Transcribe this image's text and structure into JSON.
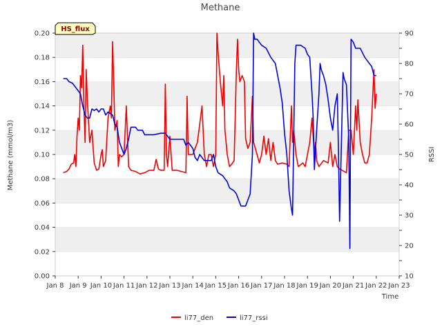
{
  "chart_data": {
    "type": "line",
    "title": "Methane",
    "badge": "HS_flux",
    "xlabel": "Time",
    "ylabel": "Methane (mmol/m3)",
    "y2label": "RSSI",
    "x_ticks": [
      "Jan 8",
      "Jan 9",
      "Jan 10",
      "Jan 11",
      "Jan 12",
      "Jan 13",
      "Jan 14",
      "Jan 15",
      "Jan 16",
      "Jan 17",
      "Jan 18",
      "Jan 19",
      "Jan 20",
      "Jan 21",
      "Jan 22",
      "Jan 23"
    ],
    "xlim": [
      8,
      23
    ],
    "ylim": [
      0,
      0.2
    ],
    "y_ticks": [
      "0.00",
      "0.02",
      "0.04",
      "0.06",
      "0.08",
      "0.10",
      "0.12",
      "0.14",
      "0.16",
      "0.18",
      "0.20"
    ],
    "y2lim": [
      10,
      90
    ],
    "y2_ticks": [
      "10",
      "20",
      "30",
      "40",
      "50",
      "60",
      "70",
      "80",
      "90"
    ],
    "colors": {
      "li77_den": "#ee0000",
      "li77_rssi": "#0000dd",
      "band": "#efefef",
      "badge_bg": "#ffffc0"
    },
    "series": [
      {
        "name": "li77_den",
        "axis": "left",
        "points": [
          [
            8.35,
            0.085
          ],
          [
            8.5,
            0.086
          ],
          [
            8.6,
            0.088
          ],
          [
            8.7,
            0.092
          ],
          [
            8.8,
            0.093
          ],
          [
            8.85,
            0.1
          ],
          [
            8.9,
            0.09
          ],
          [
            8.95,
            0.115
          ],
          [
            9.0,
            0.13
          ],
          [
            9.05,
            0.12
          ],
          [
            9.1,
            0.165
          ],
          [
            9.15,
            0.155
          ],
          [
            9.2,
            0.19
          ],
          [
            9.25,
            0.14
          ],
          [
            9.3,
            0.11
          ],
          [
            9.35,
            0.17
          ],
          [
            9.4,
            0.145
          ],
          [
            9.5,
            0.11
          ],
          [
            9.6,
            0.12
          ],
          [
            9.7,
            0.093
          ],
          [
            9.8,
            0.087
          ],
          [
            9.9,
            0.088
          ],
          [
            10.0,
            0.1
          ],
          [
            10.05,
            0.104
          ],
          [
            10.1,
            0.09
          ],
          [
            10.2,
            0.095
          ],
          [
            10.3,
            0.13
          ],
          [
            10.4,
            0.14
          ],
          [
            10.45,
            0.13
          ],
          [
            10.5,
            0.193
          ],
          [
            10.55,
            0.16
          ],
          [
            10.6,
            0.12
          ],
          [
            10.7,
            0.128
          ],
          [
            10.75,
            0.09
          ],
          [
            10.8,
            0.1
          ],
          [
            10.9,
            0.098
          ],
          [
            11.0,
            0.1
          ],
          [
            11.1,
            0.14
          ],
          [
            11.2,
            0.09
          ],
          [
            11.3,
            0.087
          ],
          [
            11.5,
            0.086
          ],
          [
            11.7,
            0.084
          ],
          [
            11.9,
            0.085
          ],
          [
            12.1,
            0.087
          ],
          [
            12.3,
            0.087
          ],
          [
            12.4,
            0.096
          ],
          [
            12.5,
            0.088
          ],
          [
            12.6,
            0.087
          ],
          [
            12.75,
            0.087
          ],
          [
            12.8,
            0.158
          ],
          [
            12.85,
            0.1
          ],
          [
            12.9,
            0.09
          ],
          [
            13.0,
            0.115
          ],
          [
            13.1,
            0.087
          ],
          [
            13.3,
            0.087
          ],
          [
            13.5,
            0.086
          ],
          [
            13.7,
            0.085
          ],
          [
            13.75,
            0.148
          ],
          [
            13.8,
            0.1
          ],
          [
            13.9,
            0.1
          ],
          [
            14.0,
            0.1
          ],
          [
            14.1,
            0.105
          ],
          [
            14.2,
            0.11
          ],
          [
            14.3,
            0.125
          ],
          [
            14.4,
            0.14
          ],
          [
            14.5,
            0.1
          ],
          [
            14.6,
            0.09
          ],
          [
            14.7,
            0.1
          ],
          [
            14.8,
            0.1
          ],
          [
            14.9,
            0.09
          ],
          [
            15.0,
            0.1
          ],
          [
            15.05,
            0.2
          ],
          [
            15.1,
            0.185
          ],
          [
            15.2,
            0.16
          ],
          [
            15.3,
            0.14
          ],
          [
            15.35,
            0.165
          ],
          [
            15.4,
            0.12
          ],
          [
            15.5,
            0.1
          ],
          [
            15.6,
            0.09
          ],
          [
            15.7,
            0.092
          ],
          [
            15.8,
            0.095
          ],
          [
            15.9,
            0.17
          ],
          [
            15.95,
            0.195
          ],
          [
            16.0,
            0.17
          ],
          [
            16.05,
            0.16
          ],
          [
            16.15,
            0.165
          ],
          [
            16.25,
            0.16
          ],
          [
            16.3,
            0.113
          ],
          [
            16.4,
            0.105
          ],
          [
            16.5,
            0.11
          ],
          [
            16.6,
            0.148
          ],
          [
            16.65,
            0.11
          ],
          [
            16.8,
            0.1
          ],
          [
            16.9,
            0.093
          ],
          [
            17.0,
            0.1
          ],
          [
            17.1,
            0.115
          ],
          [
            17.2,
            0.1
          ],
          [
            17.3,
            0.113
          ],
          [
            17.4,
            0.095
          ],
          [
            17.5,
            0.11
          ],
          [
            17.6,
            0.095
          ],
          [
            17.7,
            0.092
          ],
          [
            17.9,
            0.093
          ],
          [
            18.1,
            0.092
          ],
          [
            18.2,
            0.09
          ],
          [
            18.3,
            0.14
          ],
          [
            18.35,
            0.11
          ],
          [
            18.4,
            0.12
          ],
          [
            18.5,
            0.1
          ],
          [
            18.6,
            0.09
          ],
          [
            18.8,
            0.093
          ],
          [
            18.9,
            0.09
          ],
          [
            19.0,
            0.1
          ],
          [
            19.1,
            0.11
          ],
          [
            19.2,
            0.13
          ],
          [
            19.3,
            0.1
          ],
          [
            19.35,
            0.11
          ],
          [
            19.4,
            0.095
          ],
          [
            19.5,
            0.09
          ],
          [
            19.7,
            0.095
          ],
          [
            19.9,
            0.093
          ],
          [
            20.0,
            0.11
          ],
          [
            20.1,
            0.09
          ],
          [
            20.2,
            0.1
          ],
          [
            20.3,
            0.09
          ],
          [
            20.4,
            0.088
          ],
          [
            20.6,
            0.086
          ],
          [
            20.7,
            0.085
          ],
          [
            20.8,
            0.12
          ],
          [
            20.9,
            0.12
          ],
          [
            21.0,
            0.1
          ],
          [
            21.1,
            0.14
          ],
          [
            21.15,
            0.12
          ],
          [
            21.2,
            0.145
          ],
          [
            21.3,
            0.11
          ],
          [
            21.4,
            0.1
          ],
          [
            21.5,
            0.093
          ],
          [
            21.6,
            0.093
          ],
          [
            21.7,
            0.1
          ],
          [
            21.8,
            0.13
          ],
          [
            21.9,
            0.17
          ],
          [
            21.95,
            0.138
          ],
          [
            22.0,
            0.15
          ]
        ]
      },
      {
        "name": "li77_rssi",
        "axis": "right",
        "points": [
          [
            8.35,
            75
          ],
          [
            8.5,
            75
          ],
          [
            8.6,
            74
          ],
          [
            8.75,
            73.5
          ],
          [
            8.9,
            72
          ],
          [
            9.1,
            70
          ],
          [
            9.2,
            66
          ],
          [
            9.3,
            63
          ],
          [
            9.4,
            62
          ],
          [
            9.5,
            62
          ],
          [
            9.6,
            65
          ],
          [
            9.7,
            64.5
          ],
          [
            9.8,
            65
          ],
          [
            9.9,
            64
          ],
          [
            10.0,
            65
          ],
          [
            10.1,
            65
          ],
          [
            10.2,
            63
          ],
          [
            10.3,
            64
          ],
          [
            10.5,
            63
          ],
          [
            10.6,
            60
          ],
          [
            10.7,
            59
          ],
          [
            10.8,
            54
          ],
          [
            10.9,
            52
          ],
          [
            11.0,
            50
          ],
          [
            11.1,
            52
          ],
          [
            11.2,
            55
          ],
          [
            11.3,
            59
          ],
          [
            11.5,
            59
          ],
          [
            11.6,
            58
          ],
          [
            11.8,
            58
          ],
          [
            11.9,
            56.5
          ],
          [
            12.1,
            56.5
          ],
          [
            12.3,
            56.5
          ],
          [
            12.6,
            57
          ],
          [
            12.8,
            57
          ],
          [
            13.0,
            55
          ],
          [
            13.2,
            55
          ],
          [
            13.4,
            55
          ],
          [
            13.6,
            55
          ],
          [
            13.7,
            53
          ],
          [
            13.8,
            54
          ],
          [
            14.0,
            52
          ],
          [
            14.1,
            49
          ],
          [
            14.2,
            48
          ],
          [
            14.3,
            50
          ],
          [
            14.5,
            48
          ],
          [
            14.6,
            48
          ],
          [
            14.8,
            48
          ],
          [
            14.9,
            50
          ],
          [
            15.0,
            46
          ],
          [
            15.1,
            44
          ],
          [
            15.3,
            43
          ],
          [
            15.5,
            41
          ],
          [
            15.6,
            39
          ],
          [
            15.8,
            38
          ],
          [
            15.9,
            37
          ],
          [
            16.0,
            35
          ],
          [
            16.1,
            33
          ],
          [
            16.3,
            33
          ],
          [
            16.4,
            35
          ],
          [
            16.5,
            37
          ],
          [
            16.6,
            50
          ],
          [
            16.65,
            90
          ],
          [
            16.7,
            88
          ],
          [
            16.8,
            88
          ],
          [
            17.0,
            86
          ],
          [
            17.2,
            85
          ],
          [
            17.4,
            82
          ],
          [
            17.6,
            80
          ],
          [
            17.8,
            72
          ],
          [
            17.9,
            67
          ],
          [
            18.0,
            57
          ],
          [
            18.1,
            50
          ],
          [
            18.2,
            38
          ],
          [
            18.3,
            32
          ],
          [
            18.35,
            30
          ],
          [
            18.45,
            80
          ],
          [
            18.5,
            86
          ],
          [
            18.7,
            86
          ],
          [
            18.9,
            85
          ],
          [
            19.0,
            83
          ],
          [
            19.1,
            82
          ],
          [
            19.2,
            70
          ],
          [
            19.25,
            62
          ],
          [
            19.3,
            45
          ],
          [
            19.4,
            58
          ],
          [
            19.5,
            70
          ],
          [
            19.55,
            80
          ],
          [
            19.6,
            78
          ],
          [
            19.7,
            76
          ],
          [
            19.8,
            73
          ],
          [
            19.9,
            68
          ],
          [
            20.0,
            62
          ],
          [
            20.1,
            58
          ],
          [
            20.2,
            66
          ],
          [
            20.3,
            70
          ],
          [
            20.35,
            52
          ],
          [
            20.4,
            28
          ],
          [
            20.5,
            60
          ],
          [
            20.55,
            77
          ],
          [
            20.6,
            75
          ],
          [
            20.7,
            73
          ],
          [
            20.8,
            55
          ],
          [
            20.85,
            19
          ],
          [
            20.9,
            88
          ],
          [
            21.0,
            87
          ],
          [
            21.1,
            85
          ],
          [
            21.3,
            85
          ],
          [
            21.5,
            82
          ],
          [
            21.7,
            80
          ],
          [
            21.8,
            79
          ],
          [
            21.9,
            76
          ],
          [
            22.0,
            76
          ]
        ]
      }
    ],
    "legend": [
      "li77_den",
      "li77_rssi"
    ],
    "legend_position": "bottom-center",
    "grid": "horizontal-bands"
  }
}
